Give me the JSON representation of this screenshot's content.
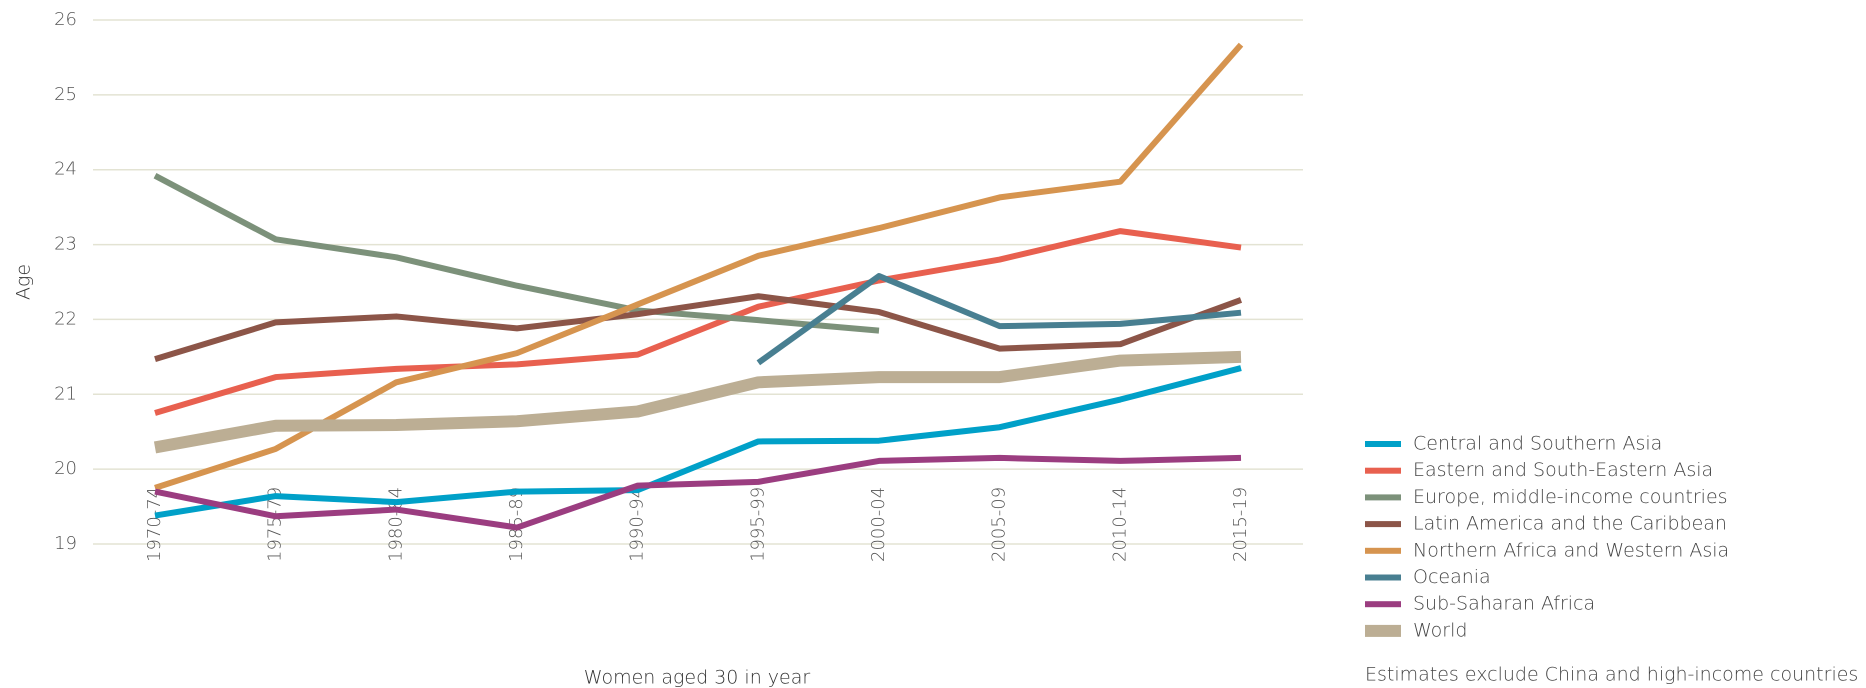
{
  "chart_data": {
    "type": "line",
    "xlabel": "Women aged 30 in year",
    "ylabel": "Age",
    "note": "Estimates exclude China and high-income countries",
    "categories": [
      "1970-74",
      "1975-79",
      "1980-84",
      "1985-89",
      "1990-94",
      "1995-99",
      "2000-04",
      "2005-09",
      "2010-14",
      "2015-19"
    ],
    "ylim": [
      19,
      26
    ],
    "yticks": [
      19,
      20,
      21,
      22,
      23,
      24,
      25,
      26
    ],
    "grid": true,
    "legend": "bottom-right",
    "series": [
      {
        "name": "Central and Southern Asia",
        "color": "#00a0c8",
        "values": [
          19.38,
          19.64,
          19.56,
          19.7,
          19.72,
          20.37,
          20.38,
          20.56,
          20.93,
          21.35
        ]
      },
      {
        "name": "Eastern and South-Eastern Asia",
        "color": "#e8604f",
        "values": [
          20.75,
          21.23,
          21.34,
          21.4,
          21.53,
          22.17,
          22.52,
          22.8,
          23.18,
          22.96
        ]
      },
      {
        "name": "Europe, middle-income countries",
        "color": "#7c917a",
        "values": [
          23.92,
          23.07,
          22.83,
          22.45,
          22.12,
          21.99,
          21.85,
          null,
          null,
          null
        ]
      },
      {
        "name": "Latin America and the Caribbean",
        "color": "#8c5548",
        "values": [
          21.47,
          21.96,
          22.04,
          21.88,
          22.07,
          22.31,
          22.1,
          21.61,
          21.67,
          22.26
        ]
      },
      {
        "name": "Northern Africa and Western Asia",
        "color": "#d6944f",
        "values": [
          19.75,
          20.27,
          21.16,
          21.55,
          22.2,
          22.85,
          23.22,
          23.63,
          23.84,
          25.67
        ]
      },
      {
        "name": "Oceania",
        "color": "#487f91",
        "values": [
          null,
          null,
          null,
          null,
          null,
          21.42,
          22.58,
          21.91,
          21.94,
          22.09
        ]
      },
      {
        "name": "Sub-Saharan Africa",
        "color": "#9b3d80",
        "values": [
          19.7,
          19.37,
          19.46,
          19.22,
          19.78,
          19.83,
          20.11,
          20.15,
          20.11,
          20.15
        ]
      },
      {
        "name": "World",
        "color": "#bcae94",
        "values": [
          20.29,
          20.58,
          20.59,
          20.64,
          20.77,
          21.16,
          21.23,
          21.23,
          21.45,
          21.5
        ]
      }
    ]
  }
}
